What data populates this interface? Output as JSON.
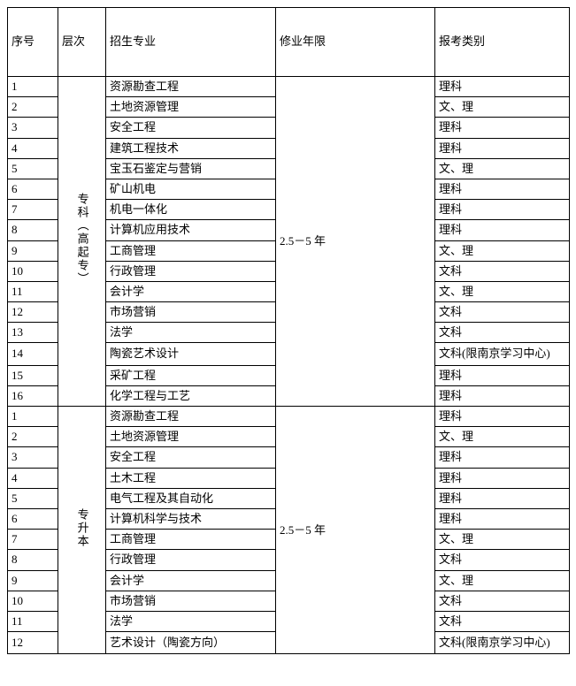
{
  "headers": {
    "num": "序号",
    "level": "层次",
    "major": "招生专业",
    "duration": "修业年限",
    "category": "报考类别"
  },
  "groups": [
    {
      "level": "专科（高起专）",
      "level_is_vertical": true,
      "duration": "2.5－5 年",
      "rows": [
        {
          "num": "1",
          "major": "资源勘查工程",
          "category": "理科"
        },
        {
          "num": "2",
          "major": "土地资源管理",
          "category": "文、理"
        },
        {
          "num": "3",
          "major": "安全工程",
          "category": "理科"
        },
        {
          "num": "4",
          "major": "建筑工程技术",
          "category": "理科"
        },
        {
          "num": "5",
          "major": "宝玉石鉴定与营销",
          "category": "文、理"
        },
        {
          "num": "6",
          "major": "矿山机电",
          "category": "理科"
        },
        {
          "num": "7",
          "major": "机电一体化",
          "category": "理科"
        },
        {
          "num": "8",
          "major": "计算机应用技术",
          "category": "理科"
        },
        {
          "num": "9",
          "major": "工商管理",
          "category": "文、理"
        },
        {
          "num": "10",
          "major": "行政管理",
          "category": "文科"
        },
        {
          "num": "11",
          "major": "会计学",
          "category": "文、理"
        },
        {
          "num": "12",
          "major": "市场营销",
          "category": "文科"
        },
        {
          "num": "13",
          "major": "法学",
          "category": "文科"
        },
        {
          "num": "14",
          "major": "陶瓷艺术设计",
          "category": "文科(限南京学习中心)",
          "tall": true
        },
        {
          "num": "15",
          "major": "采矿工程",
          "category": "理科"
        },
        {
          "num": "16",
          "major": "化学工程与工艺",
          "category": "理科"
        }
      ]
    },
    {
      "level": "专升本",
      "level_is_vertical": true,
      "duration": "2.5－5 年",
      "rows": [
        {
          "num": "1",
          "major": "资源勘查工程",
          "category": "理科"
        },
        {
          "num": "2",
          "major": "土地资源管理",
          "category": "文、理"
        },
        {
          "num": "3",
          "major": "安全工程",
          "category": "理科"
        },
        {
          "num": "4",
          "major": "土木工程",
          "category": "理科"
        },
        {
          "num": "5",
          "major": "电气工程及其自动化",
          "category": "理科"
        },
        {
          "num": "6",
          "major": "计算机科学与技术",
          "category": "理科"
        },
        {
          "num": "7",
          "major": "工商管理",
          "category": "文、理"
        },
        {
          "num": "8",
          "major": "行政管理",
          "category": "文科"
        },
        {
          "num": "9",
          "major": "会计学",
          "category": "文、理"
        },
        {
          "num": "10",
          "major": "市场营销",
          "category": "文科"
        },
        {
          "num": "11",
          "major": "法学",
          "category": "文科"
        },
        {
          "num": "12",
          "major": "艺术设计（陶瓷方向）",
          "category": "文科(限南京学习中心)",
          "tall": true
        }
      ]
    }
  ],
  "colors": {
    "border": "#000000",
    "text": "#000000",
    "background": "#ffffff"
  },
  "font": {
    "family": "SimSun",
    "size_pt": 10
  }
}
